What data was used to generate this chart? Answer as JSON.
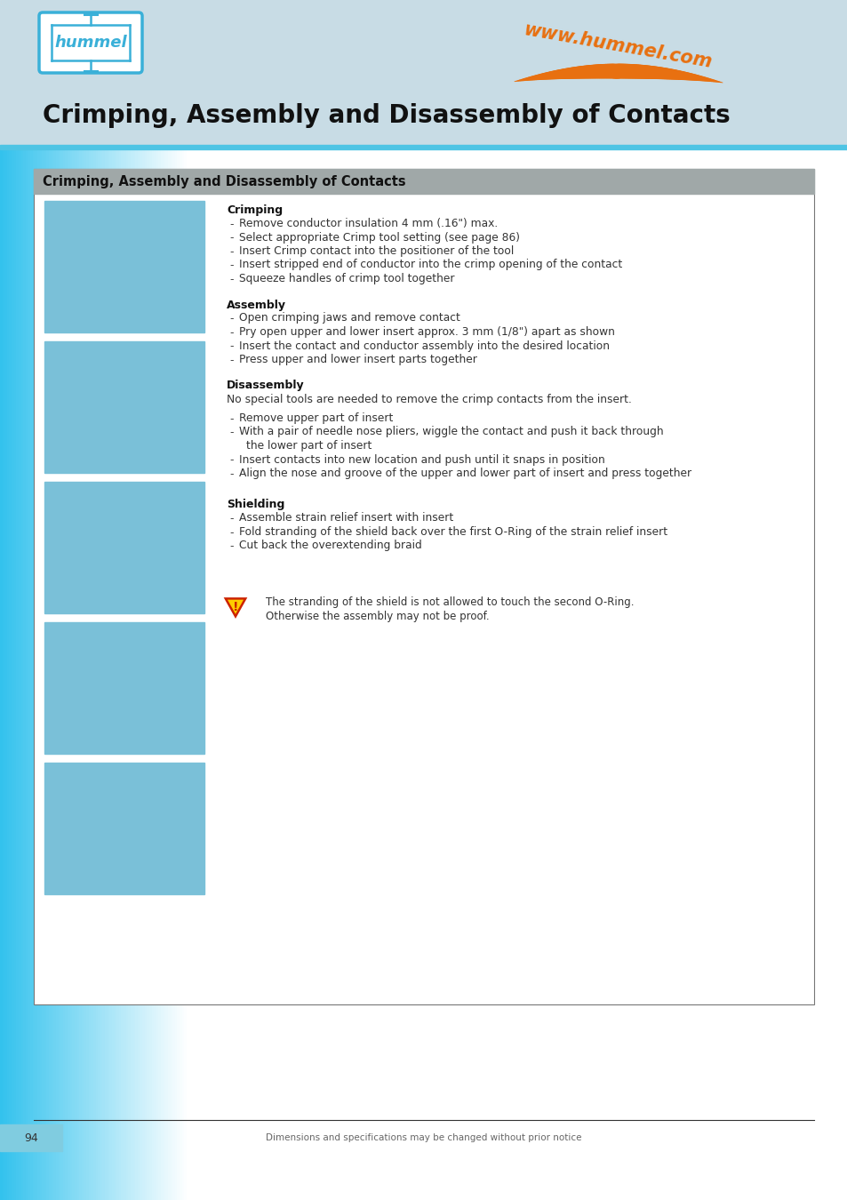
{
  "page_bg": "#ffffff",
  "header_bg": "#c8dce5",
  "hummel_color": "#3ab0d8",
  "orange_color": "#e87010",
  "box_header_bg": "#a0a8a8",
  "box_header_text": "Crimping, Assembly and Disassembly of Contacts",
  "header_title": "Crimping, Assembly and Disassembly of Contacts",
  "www_text": "www.hummel.com",
  "footer_page": "94",
  "footer_text": "Dimensions and specifications may be changed without prior notice",
  "section_crimping_title": "Crimping",
  "section_crimping_bullets": [
    "Remove conductor insulation 4 mm (.16\") max.",
    "Select appropriate Crimp tool setting (see page 86)",
    "Insert Crimp contact into the positioner of the tool",
    "Insert stripped end of conductor into the crimp opening of the contact",
    "Squeeze handles of crimp tool together"
  ],
  "section_assembly_title": "Assembly",
  "section_assembly_bullets": [
    "Open crimping jaws and remove contact",
    "Pry open upper and lower insert approx. 3 mm (1/8\") apart as shown",
    "Insert the contact and conductor assembly into the desired location",
    "Press upper and lower insert parts together"
  ],
  "section_disassembly_title": "Disassembly",
  "section_disassembly_intro": "No special tools are needed to remove the crimp contacts from the insert.",
  "section_disassembly_bullets": [
    "Remove upper part of insert",
    "With a pair of needle nose pliers, wiggle the contact and push it back through\nthe lower part of insert",
    "Insert contacts into new location and push until it snaps in position",
    "Align the nose and groove of the upper and lower part of insert and press together"
  ],
  "section_shielding_title": "Shielding",
  "section_shielding_bullets": [
    "Assemble strain relief insert with insert",
    "Fold stranding of the shield back over the first O-Ring of the strain relief insert",
    "Cut back the overextending braid"
  ],
  "warning_text": "The stranding of the shield is not allowed to touch the second O-Ring.\nOtherwise the assembly may not be proof."
}
